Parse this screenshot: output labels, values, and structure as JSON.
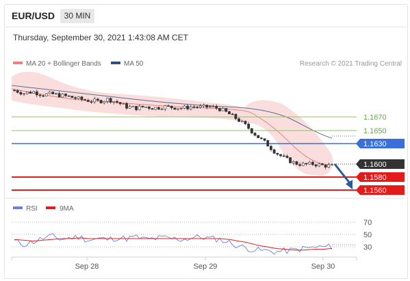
{
  "header": {
    "pair": "EUR/USD",
    "timeframe": "30 MIN"
  },
  "datetime": "Thursday, September 30, 2021 1:43:08 AM CET",
  "legend": {
    "ma_bollinger": "MA 20 + Bollinger Bands",
    "ma50": "MA 50",
    "credit": "Research © 2021 Trading Central"
  },
  "colors": {
    "bollinger": "#f08080",
    "ma50": "#5a6e8c",
    "resistance": "#8fc36a",
    "pivot": "#3a6fd8",
    "support": "#e31b1b",
    "current": "#333333",
    "rsi": "#6a7fe0",
    "rsi_ma": "#e31b1b",
    "arrow": "#2b5a9a"
  },
  "levels": {
    "r2": "1.1670",
    "r1": "1.1650",
    "pivot": "1.1630",
    "current": "1.1600",
    "s1": "1.1580",
    "s2": "1.1560"
  },
  "rsi_legend": {
    "rsi": "RSI",
    "ma": "9MA"
  },
  "rsi_levels": [
    "70",
    "50",
    "30"
  ],
  "xaxis": [
    "Sep 28",
    "Sep 29",
    "Sep 30"
  ],
  "chart_data": [
    {
      "type": "candlestick",
      "title": "EUR/USD",
      "timeframe": "30 MIN",
      "x_tick_labels": [
        "Sep 28",
        "Sep 29",
        "Sep 30"
      ],
      "price_levels": [
        1.167,
        1.165,
        1.163,
        1.16,
        1.158,
        1.156
      ],
      "current_price": 1.16,
      "ylim": [
        1.1555,
        1.1725
      ],
      "close_approx": [
        1.1702,
        1.1698,
        1.17,
        1.1696,
        1.1697,
        1.1695,
        1.1693,
        1.169,
        1.1688,
        1.1687,
        1.169,
        1.1686,
        1.168,
        1.1678,
        1.168,
        1.1678,
        1.168,
        1.1679,
        1.1678,
        1.168,
        1.1679,
        1.168,
        1.1677,
        1.167,
        1.1662,
        1.1652,
        1.164,
        1.163,
        1.1618,
        1.161,
        1.1604,
        1.1602,
        1.1603,
        1.1601,
        1.16
      ],
      "series": [
        {
          "name": "MA 20 + Bollinger Bands"
        },
        {
          "name": "MA 50"
        }
      ]
    },
    {
      "type": "line",
      "series": [
        {
          "name": "RSI",
          "values": [
            42,
            38,
            41,
            45,
            48,
            44,
            46,
            47,
            43,
            45,
            44,
            46,
            45,
            47,
            44,
            45,
            46,
            45,
            44,
            46,
            47,
            45,
            44,
            40,
            36,
            33,
            31,
            30,
            29,
            30,
            31,
            33,
            34,
            35,
            35
          ]
        },
        {
          "name": "9MA",
          "values": [
            44,
            43,
            42,
            43,
            44,
            45,
            45,
            46,
            45,
            45,
            45,
            45,
            45,
            45,
            45,
            45,
            45,
            45,
            45,
            45,
            45,
            45,
            45,
            44,
            42,
            40,
            37,
            35,
            33,
            32,
            31,
            31,
            32,
            32,
            33
          ]
        }
      ],
      "levels": [
        70,
        50,
        30
      ],
      "ylim": [
        20,
        80
      ]
    }
  ]
}
